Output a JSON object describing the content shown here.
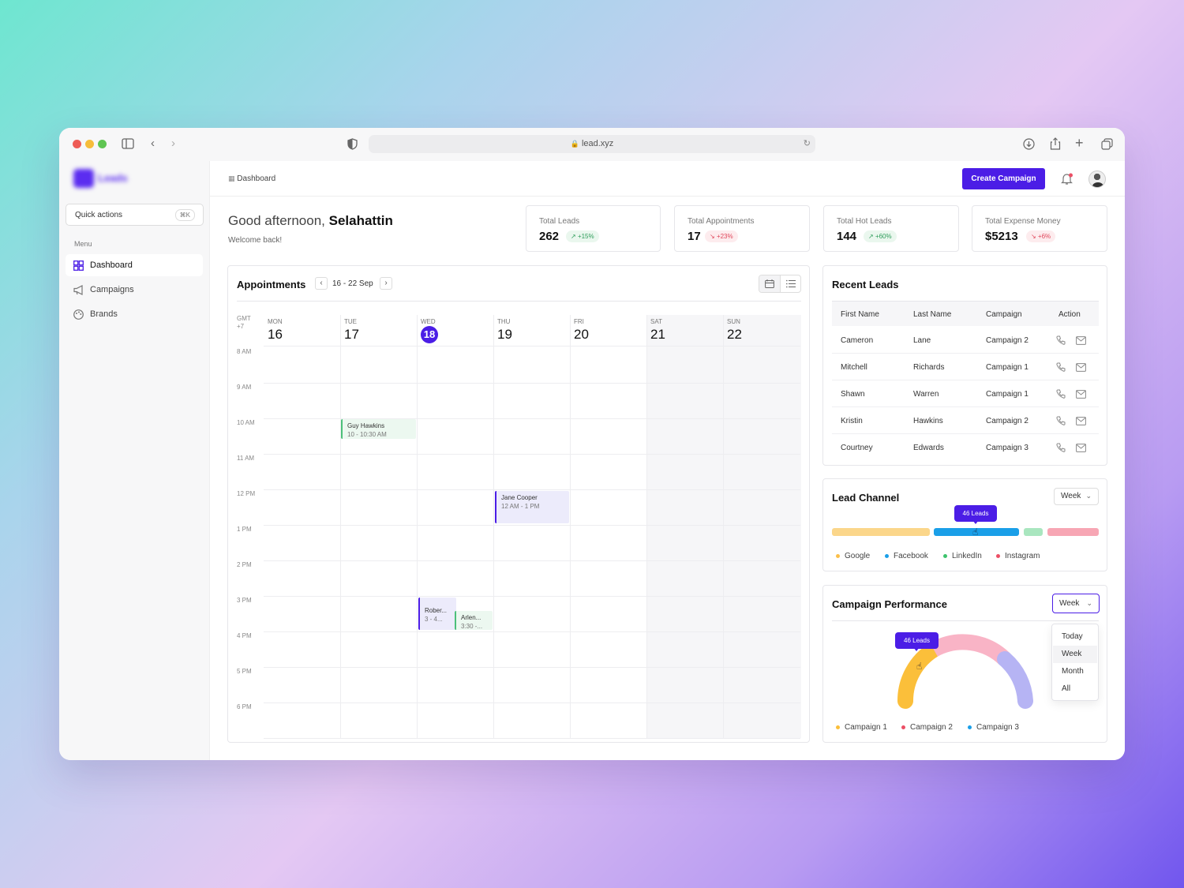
{
  "browser": {
    "url": "lead.xyz"
  },
  "sidebar": {
    "brand": "Leads",
    "quick_actions": {
      "label": "Quick actions",
      "shortcut": "⌘K"
    },
    "menu_label": "Menu",
    "items": [
      {
        "label": "Dashboard",
        "icon": "grid-icon",
        "active": true
      },
      {
        "label": "Campaigns",
        "icon": "megaphone-icon",
        "active": false
      },
      {
        "label": "Brands",
        "icon": "palette-icon",
        "active": false
      }
    ]
  },
  "header": {
    "breadcrumb": "Dashboard",
    "create_button": "Create Campaign"
  },
  "greeting": {
    "prefix": "Good afternoon,",
    "name": "Selahattin",
    "subtitle": "Welcome back!"
  },
  "stats": [
    {
      "title": "Total Leads",
      "value": "262",
      "change": "+15%",
      "trend": "up"
    },
    {
      "title": "Total Appointments",
      "value": "17",
      "change": "+23%",
      "trend": "down"
    },
    {
      "title": "Total Hot Leads",
      "value": "144",
      "change": "+60%",
      "trend": "up"
    },
    {
      "title": "Total Expense Money",
      "value": "$5213",
      "change": "+6%",
      "trend": "down"
    }
  ],
  "appointments": {
    "title": "Appointments",
    "range": "16 - 22 Sep",
    "timezone": "GMT +7",
    "days": [
      {
        "name": "MON",
        "num": "16"
      },
      {
        "name": "TUE",
        "num": "17"
      },
      {
        "name": "WED",
        "num": "18"
      },
      {
        "name": "THU",
        "num": "19"
      },
      {
        "name": "FRI",
        "num": "20"
      },
      {
        "name": "SAT",
        "num": "21"
      },
      {
        "name": "SUN",
        "num": "22"
      }
    ],
    "hours": [
      "8 AM",
      "9 AM",
      "10 AM",
      "11 AM",
      "12 PM",
      "1 PM",
      "2 PM",
      "3 PM",
      "4 PM",
      "5 PM",
      "6 PM"
    ],
    "events": [
      {
        "name": "Guy Hawkins",
        "time": "10 - 10:30 AM"
      },
      {
        "name": "Jane Cooper",
        "time": "12 AM - 1 PM"
      },
      {
        "name": "Rober...",
        "time": "3 - 4..."
      },
      {
        "name": "Arlen...",
        "time": "3:30 -..."
      }
    ]
  },
  "recent_leads": {
    "title": "Recent Leads",
    "columns": [
      "First Name",
      "Last Name",
      "Campaign",
      "Action"
    ],
    "rows": [
      {
        "first": "Cameron",
        "last": "Lane",
        "campaign": "Campaign 2"
      },
      {
        "first": "Mitchell",
        "last": "Richards",
        "campaign": "Campaign 1"
      },
      {
        "first": "Shawn",
        "last": "Warren",
        "campaign": "Campaign 1"
      },
      {
        "first": "Kristin",
        "last": "Hawkins",
        "campaign": "Campaign 2"
      },
      {
        "first": "Courtney",
        "last": "Edwards",
        "campaign": "Campaign 3"
      }
    ]
  },
  "lead_channel": {
    "title": "Lead Channel",
    "period": "Week",
    "tooltip": "46 Leads",
    "legend": [
      {
        "name": "Google",
        "color": "#fbd68a"
      },
      {
        "name": "Facebook",
        "color": "#1a9fe8"
      },
      {
        "name": "LinkedIn",
        "color": "#a9e6bf"
      },
      {
        "name": "Instagram",
        "color": "#f7a6b4"
      }
    ],
    "dot_colors": [
      "#fbbf4a",
      "#1a9fe8",
      "#3cc36c",
      "#ec4f65"
    ]
  },
  "campaign_performance": {
    "title": "Campaign Performance",
    "period": "Week",
    "tooltip": "46 Leads",
    "dropdown_options": [
      "Today",
      "Week",
      "Month",
      "All"
    ],
    "legend": [
      {
        "name": "Campaign 1",
        "color": "#fbbf3a"
      },
      {
        "name": "Campaign 2",
        "color": "#ec4f65"
      },
      {
        "name": "Campaign 3",
        "color": "#1a9fe8"
      }
    ]
  },
  "colors": {
    "accent": "#4b1de6"
  }
}
